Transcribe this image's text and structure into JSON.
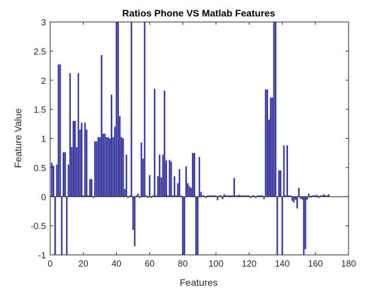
{
  "chart_data": {
    "type": "bar",
    "title": "Ratios Phone VS Matlab Features",
    "xlabel": "Features",
    "ylabel": "Feature Value",
    "xlim": [
      0,
      180
    ],
    "ylim": [
      -1,
      3
    ],
    "xticks": [
      0,
      20,
      40,
      60,
      80,
      100,
      120,
      140,
      160,
      180
    ],
    "yticks": [
      -1,
      -0.5,
      0,
      0.5,
      1,
      1.5,
      2,
      2.5,
      3
    ],
    "xtick_labels": [
      "0",
      "20",
      "40",
      "60",
      "80",
      "100",
      "120",
      "140",
      "160",
      "180"
    ],
    "ytick_labels": [
      "-1",
      "-0.5",
      "0",
      "0.5",
      "1",
      "1.5",
      "2",
      "2.5",
      "3"
    ],
    "grid": false,
    "bar_color": "#2b2b8c",
    "bar_edge_color": "#6666cc",
    "x": [
      1,
      2,
      3,
      4,
      5,
      6,
      7,
      8,
      9,
      10,
      11,
      12,
      13,
      14,
      15,
      16,
      17,
      18,
      19,
      20,
      21,
      22,
      23,
      24,
      25,
      26,
      27,
      28,
      29,
      30,
      31,
      32,
      33,
      34,
      35,
      36,
      37,
      38,
      39,
      40,
      41,
      42,
      43,
      44,
      45,
      46,
      47,
      48,
      49,
      50,
      51,
      52,
      53,
      54,
      55,
      56,
      57,
      58,
      59,
      60,
      61,
      62,
      63,
      64,
      65,
      66,
      67,
      68,
      69,
      70,
      71,
      72,
      73,
      74,
      75,
      76,
      77,
      78,
      79,
      80,
      81,
      82,
      83,
      84,
      85,
      86,
      87,
      88,
      89,
      90,
      91,
      92,
      93,
      94,
      95,
      96,
      97,
      98,
      99,
      100,
      101,
      102,
      103,
      104,
      105,
      106,
      107,
      108,
      109,
      110,
      111,
      112,
      113,
      114,
      115,
      116,
      117,
      118,
      119,
      120,
      121,
      122,
      123,
      124,
      125,
      126,
      127,
      128,
      129,
      130,
      131,
      132,
      133,
      134,
      135,
      136,
      137,
      138,
      139,
      140,
      141,
      142,
      143,
      144,
      145,
      146,
      147,
      148,
      149,
      150,
      151,
      152,
      153,
      154,
      155,
      156,
      157,
      158,
      159,
      160,
      161,
      162,
      163,
      164,
      165,
      166,
      167,
      168
    ],
    "values": [
      0.58,
      0.53,
      -1,
      0.55,
      2.27,
      2.27,
      -1,
      0.76,
      0.76,
      -1,
      0.55,
      2.12,
      0.85,
      1.3,
      1.3,
      0.85,
      2.12,
      1.15,
      1.27,
      0.02,
      1.27,
      1.15,
      0.02,
      0.3,
      0.3,
      -0.02,
      0.95,
      0.95,
      1.02,
      1.02,
      2.43,
      1.08,
      1.08,
      1.02,
      1.02,
      1.0,
      1.75,
      1.02,
      1.2,
      3,
      3,
      1.38,
      1.02,
      1.0,
      0.13,
      0.72,
      -0.02,
      0.02,
      3,
      -0.57,
      -0.85,
      0.02,
      0.05,
      -0.02,
      0.93,
      0.65,
      3,
      0.02,
      -0.02,
      0.37,
      -0.02,
      0.02,
      1.85,
      0.02,
      0.35,
      0.72,
      0.33,
      0.72,
      1.82,
      0.62,
      0.02,
      0.63,
      0.6,
      0.02,
      0.35,
      0.02,
      0.23,
      0.47,
      0.02,
      -1,
      -1,
      0.52,
      0.23,
      0.18,
      0.15,
      0.75,
      0.75,
      -1,
      -1,
      0.68,
      0.08,
      0.02,
      0.02,
      -0.02,
      0.02,
      0.02,
      0.02,
      0.02,
      0.02,
      0.02,
      -0.06,
      0.02,
      0.02,
      -0.04,
      0.04,
      0.02,
      0.02,
      0.02,
      0.02,
      0.02,
      0.32,
      0.02,
      0.02,
      0.03,
      0.02,
      0.02,
      0.02,
      0.02,
      0.02,
      0.02,
      -0.02,
      0.02,
      0.02,
      -0.02,
      0.02,
      0.02,
      0.02,
      0.02,
      -0.04,
      1.84,
      1.84,
      1.32,
      1.7,
      1.7,
      3,
      3,
      -1,
      0.45,
      0.45,
      -1,
      0.88,
      0.02,
      0.88,
      0.02,
      0.02,
      -0.07,
      -0.1,
      -0.05,
      -0.2,
      0.15,
      -0.03,
      -0.05,
      -1,
      -0.9,
      -0.05,
      0.05,
      -0.02,
      0.02,
      0.02,
      0.02,
      0.03,
      -0.02,
      0.02,
      0.02,
      0.04,
      0.02,
      0.02,
      0.04
    ]
  }
}
